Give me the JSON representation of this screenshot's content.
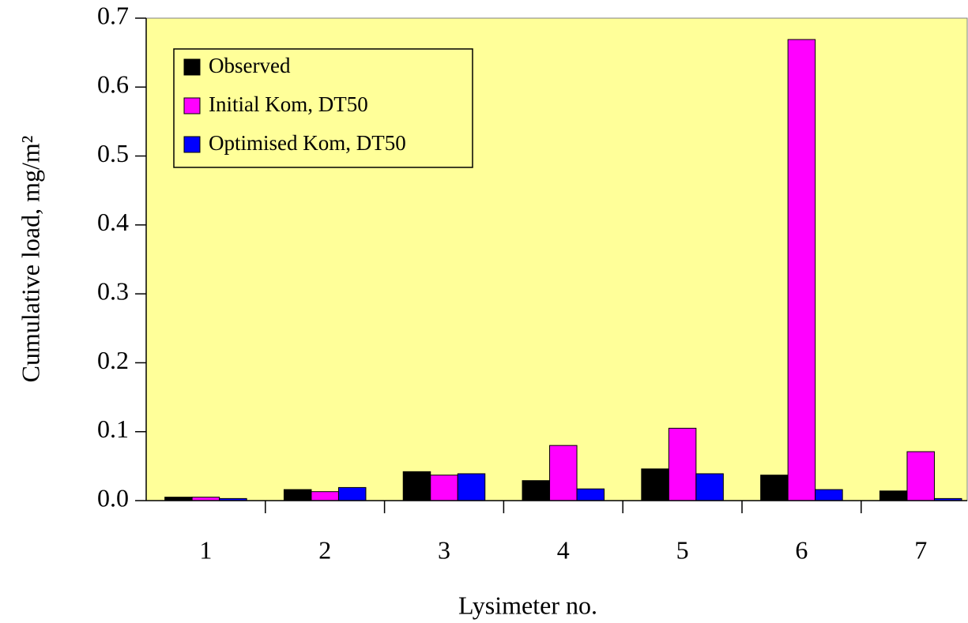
{
  "chart_data": {
    "type": "bar",
    "xlabel": "Lysimeter no.",
    "ylabel": "Cumulative load, mg/m²",
    "categories": [
      "1",
      "2",
      "3",
      "4",
      "5",
      "6",
      "7"
    ],
    "series": [
      {
        "name": "Observed",
        "color": "#000000",
        "values": [
          0.005,
          0.016,
          0.042,
          0.029,
          0.046,
          0.037,
          0.014
        ]
      },
      {
        "name": "Initial Kom, DT50",
        "color": "#ff00ff",
        "values": [
          0.005,
          0.013,
          0.037,
          0.08,
          0.105,
          0.669,
          0.071
        ]
      },
      {
        "name": "Optimised Kom, DT50",
        "color": "#0000ff",
        "values": [
          0.003,
          0.019,
          0.039,
          0.017,
          0.039,
          0.016,
          0.003
        ]
      }
    ],
    "ylim": [
      0,
      0.7
    ],
    "yticks": [
      {
        "value": 0,
        "label": "0.0"
      },
      0.1,
      0.2,
      0.3,
      0.4,
      0.5,
      0.6,
      0.7
    ],
    "plot_background": "#ffff99",
    "legend": "upper left"
  }
}
